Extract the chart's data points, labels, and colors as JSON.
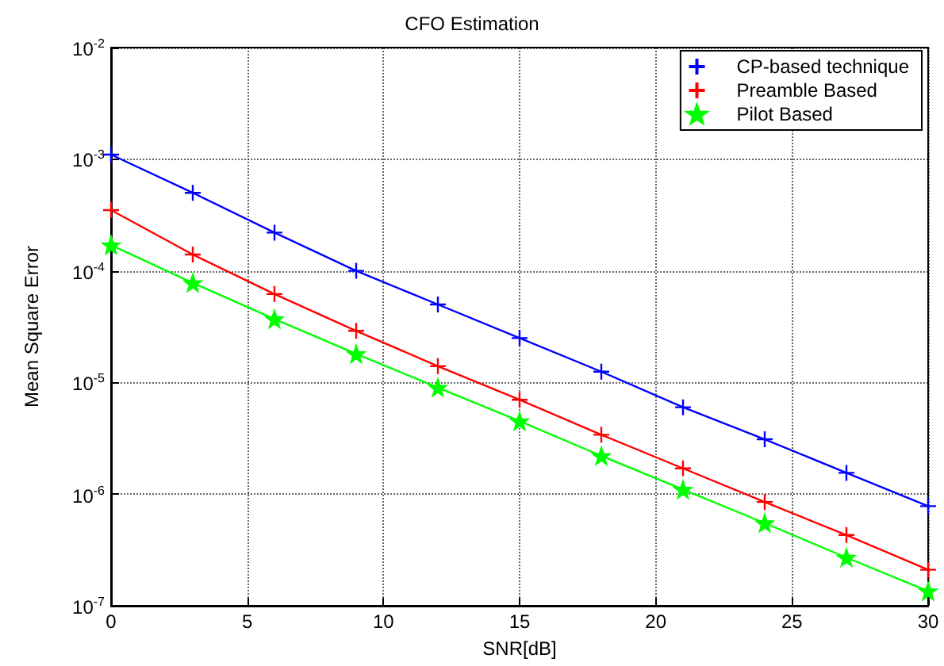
{
  "chart_data": {
    "type": "line",
    "title": "CFO Estimation",
    "xlabel": "SNR[dB]",
    "ylabel": "Mean Square Error",
    "x": [
      0,
      3,
      6,
      9,
      12,
      15,
      18,
      21,
      24,
      27,
      30
    ],
    "series": [
      {
        "name": "CP-based technique",
        "color": "#0000ff",
        "marker": "cross",
        "values": [
          0.0011,
          0.0005,
          0.00022,
          0.0001,
          5e-05,
          2.5e-05,
          1.25e-05,
          6e-06,
          3.1e-06,
          1.55e-06,
          7.8e-07
        ]
      },
      {
        "name": "Preamble Based",
        "color": "#ff0000",
        "marker": "cross",
        "values": [
          0.00035,
          0.00014,
          6.2e-05,
          2.9e-05,
          1.4e-05,
          7e-06,
          3.4e-06,
          1.7e-06,
          8.5e-07,
          4.3e-07,
          2.1e-07
        ]
      },
      {
        "name": "Pilot Based",
        "color": "#00ff00",
        "marker": "star",
        "values": [
          0.00017,
          7.8e-05,
          3.7e-05,
          1.8e-05,
          9e-06,
          4.5e-06,
          2.2e-06,
          1.1e-06,
          5.5e-07,
          2.7e-07,
          1.35e-07
        ]
      }
    ],
    "xlim": [
      0,
      30
    ],
    "xticks": [
      0,
      5,
      10,
      15,
      20,
      25,
      30
    ],
    "ylim": [
      1e-07,
      0.01
    ],
    "yticks": [
      {
        "value": 1e-07,
        "label": "10$^{-7}$"
      },
      {
        "value": 1e-06,
        "label": "10$^{-6}$"
      },
      {
        "value": 1e-05,
        "label": "10$^{-5}$"
      },
      {
        "value": 0.0001,
        "label": "10$^{-4}$"
      },
      {
        "value": 0.001,
        "label": "10$^{-3}$"
      },
      {
        "value": 0.01,
        "label": "10$^{-2}$"
      }
    ],
    "log": "y",
    "grid": true,
    "legend": "top right",
    "line_style": "solid"
  }
}
